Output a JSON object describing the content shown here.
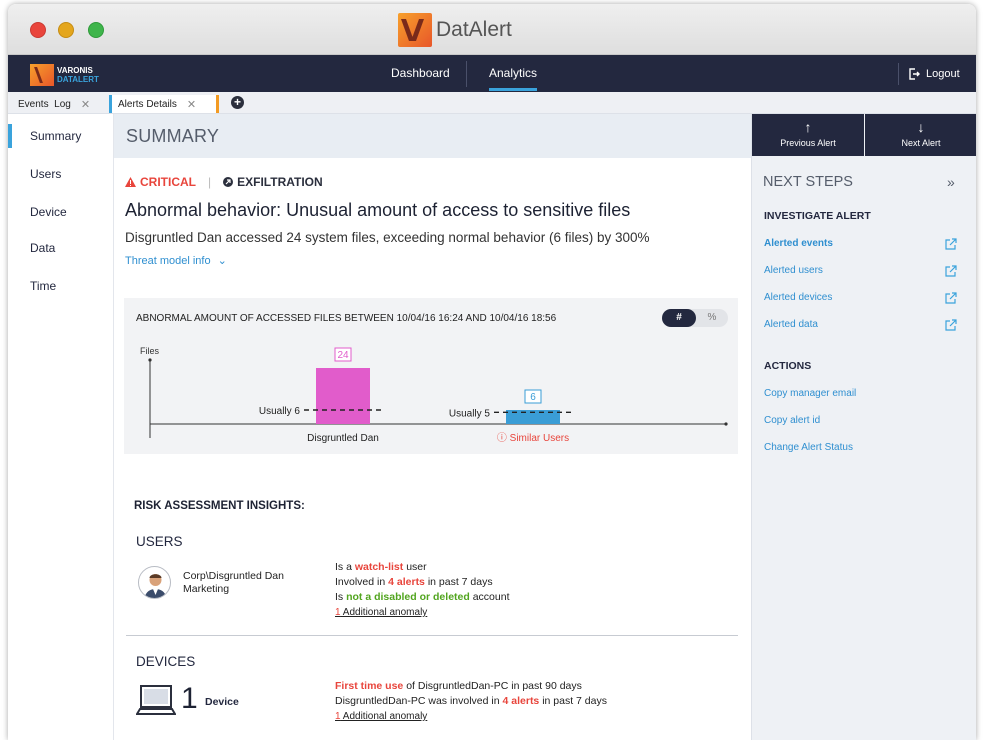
{
  "window": {
    "title": "DatAlert"
  },
  "navbar": {
    "brand_line1": "VARONIS",
    "brand_line2": "DATALERT",
    "links": [
      "Dashboard",
      "Analytics"
    ],
    "active": "Analytics",
    "logout": "Logout"
  },
  "tabs": [
    {
      "label": "Events  Log"
    },
    {
      "label": "Alerts Details"
    }
  ],
  "sidebar": {
    "items": [
      "Summary",
      "Users",
      "Device",
      "Data",
      "Time"
    ],
    "active": "Summary"
  },
  "summary": {
    "header": "SUMMARY",
    "severity": "CRITICAL",
    "category": "EXFILTRATION",
    "headline": "Abnormal behavior: Unusual amount of access to sensitive files",
    "description": "Disgruntled Dan accessed 24 system files, exceeding normal behavior (6 files) by 300%",
    "threat_model_link": "Threat model info"
  },
  "chart": {
    "toggle_num": "#",
    "toggle_pct": "%",
    "chart_data": {
      "type": "bar",
      "title": "ABNORMAL AMOUNT OF ACCESSED FILES BETWEEN 10/04/16 16:24 AND 10/04/16 18:56",
      "ylabel": "Files",
      "categories": [
        "Disgruntled Dan",
        "Similar Users"
      ],
      "values": [
        24,
        6
      ],
      "value_labels": [
        "24",
        "6"
      ],
      "baselines": [
        6,
        5
      ],
      "baseline_labels": [
        "Usually 6",
        "Usually 5"
      ],
      "colors": [
        "#e15ccb",
        "#3a9dd6"
      ],
      "ylim": [
        0,
        30
      ],
      "grid": false
    }
  },
  "risk": {
    "title": "RISK ASSESSMENT INSIGHTS:",
    "users_label": "USERS",
    "user_name": "Corp\\Disgruntled Dan",
    "user_dept": "Marketing",
    "user_facts": {
      "l1a": "Is a ",
      "l1b": "watch-list",
      "l1c": " user",
      "l2a": "Involved in ",
      "l2b": "4 alerts",
      "l2c": " in past 7 days",
      "l3a": "Is ",
      "l3b": "not a disabled or deleted",
      "l3c": " account",
      "l4a": "1",
      "l4b": " Additional anomaly"
    },
    "devices_label": "DEVICES",
    "device_count": "1",
    "device_label": "Device",
    "device_facts": {
      "l1a": "First time use",
      "l1b": " of DisgruntledDan-PC in past 90 days",
      "l2a": "DisgruntledDan-PC was involved in ",
      "l2b": "4 alerts",
      "l2c": " in past 7 days",
      "l3a": "1",
      "l3b": " Additional anomaly"
    }
  },
  "right": {
    "prev": "Previous Alert",
    "next": "Next Alert",
    "title": "NEXT STEPS",
    "investigate": "INVESTIGATE ALERT",
    "investigate_links": [
      "Alerted events",
      "Alerted users",
      "Alerted devices",
      "Alerted data"
    ],
    "actions": "ACTIONS",
    "action_links": [
      "Copy manager email",
      "Copy alert id",
      "Change Alert Status"
    ]
  },
  "colors": {
    "accent": "#3aa3dc",
    "navbar": "#23283f",
    "critical": "#e8453c"
  }
}
